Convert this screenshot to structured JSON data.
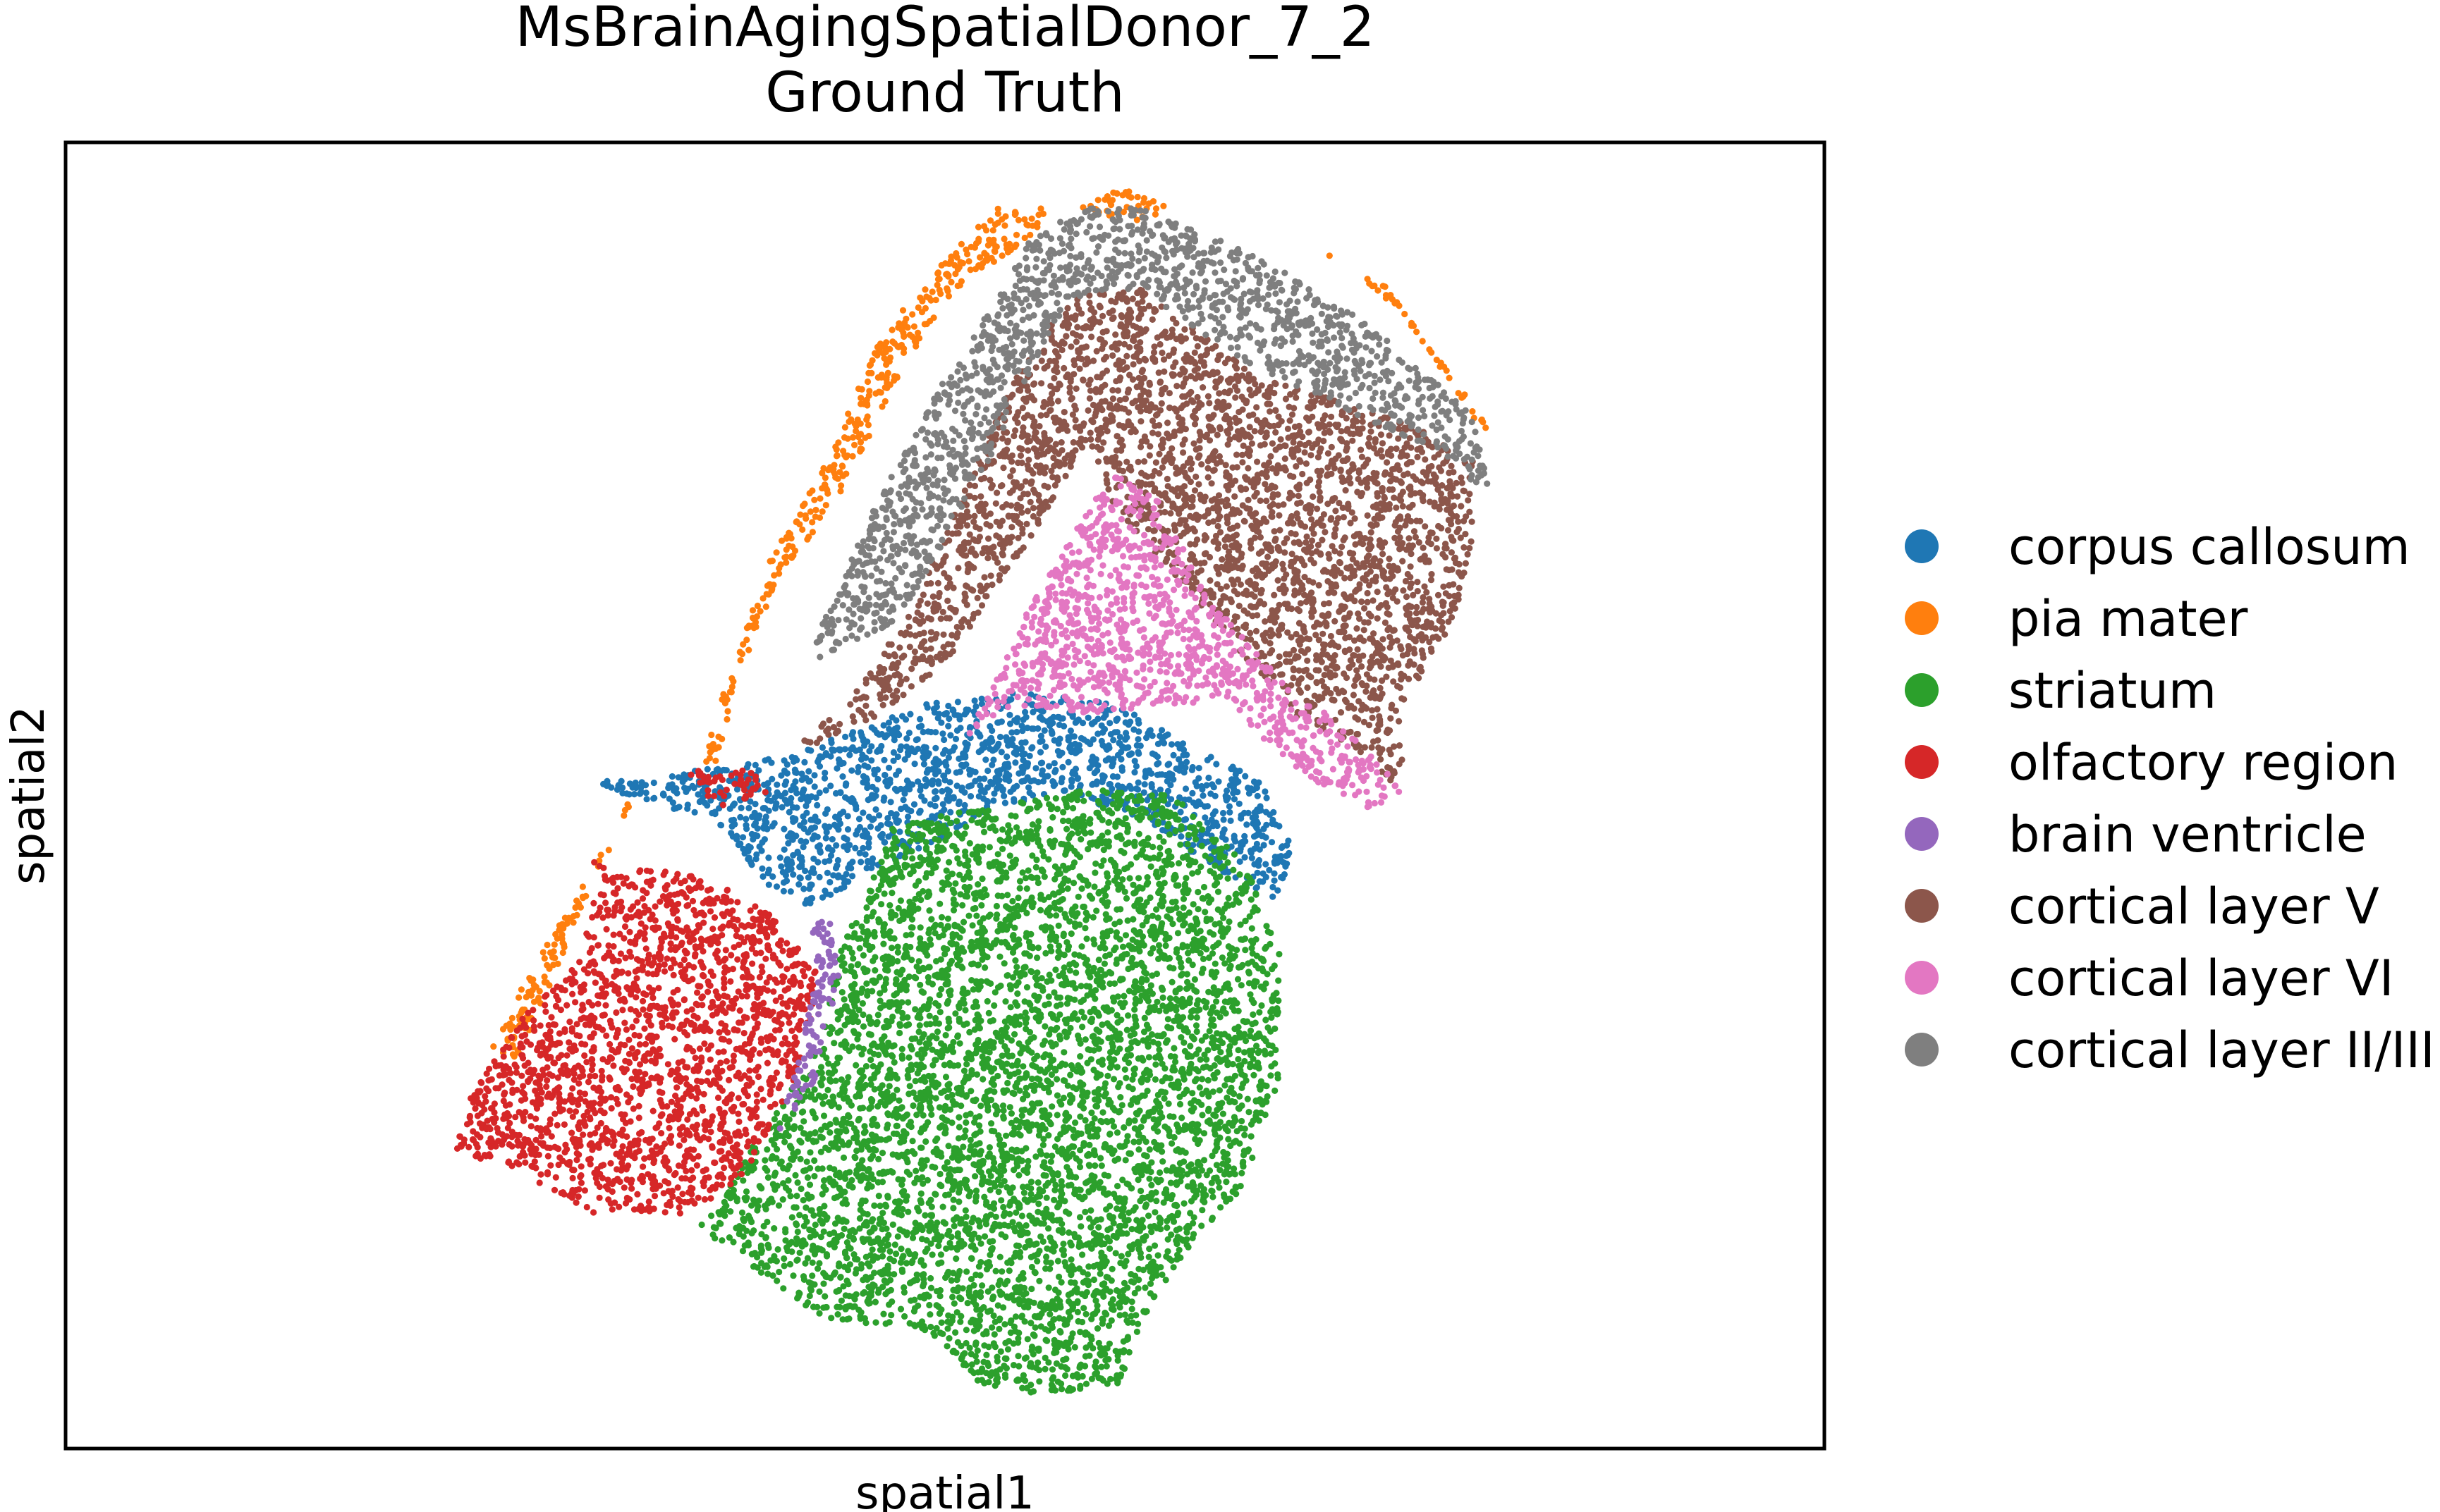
{
  "chart_data": {
    "type": "scatter",
    "title": "MsBrainAgingSpatialDonor_7_2",
    "subtitle": "Ground Truth",
    "xlabel": "spatial1",
    "ylabel": "spatial2",
    "xlim": [
      0,
      100
    ],
    "ylim": [
      0,
      100
    ],
    "grid": false,
    "ticks_visible": false,
    "legend_position": "right",
    "series": [
      {
        "name": "corpus callosum",
        "color": "#1f77b4",
        "regions": [
          [
            [
              30,
              51
            ],
            [
              34,
              51.5
            ],
            [
              41,
              53
            ],
            [
              49,
              57
            ],
            [
              54,
              58
            ],
            [
              60,
              57
            ],
            [
              64,
              54
            ],
            [
              68,
              51
            ],
            [
              70,
              46
            ],
            [
              69,
              42
            ],
            [
              66,
              44
            ],
            [
              60,
              49
            ],
            [
              56,
              50
            ],
            [
              53,
              49
            ],
            [
              49,
              46
            ],
            [
              45,
              44
            ],
            [
              43,
              41
            ],
            [
              40,
              43
            ],
            [
              37,
              48
            ],
            [
              32,
              50
            ]
          ]
        ]
      },
      {
        "name": "pia mater",
        "color": "#ff7f0e",
        "regions": [
          [
            [
              46,
              84
            ],
            [
              48,
              88
            ],
            [
              50,
              91
            ],
            [
              53,
              95
            ],
            [
              56,
              95
            ],
            [
              55,
              93
            ],
            [
              50,
              88
            ],
            [
              47,
              81
            ],
            [
              44,
              73
            ],
            [
              40,
              65
            ],
            [
              38,
              58
            ],
            [
              37,
              52
            ],
            [
              36,
              53
            ],
            [
              38,
              60
            ],
            [
              40,
              68
            ],
            [
              43,
              75
            ]
          ],
          [
            [
              32,
              49
            ],
            [
              33,
              52
            ],
            [
              31,
              47
            ],
            [
              28,
              40
            ],
            [
              25,
              33
            ],
            [
              24,
              30
            ],
            [
              26,
              30
            ],
            [
              28,
              37
            ],
            [
              30,
              43
            ]
          ],
          [
            [
              57,
              95
            ],
            [
              60,
              96.5
            ],
            [
              63,
              95
            ],
            [
              61,
              94
            ]
          ],
          [
            [
              71,
              92
            ],
            [
              75,
              89
            ],
            [
              80,
              80
            ],
            [
              82,
              76
            ],
            [
              80,
              79
            ],
            [
              76,
              87
            ]
          ]
        ]
      },
      {
        "name": "striatum",
        "color": "#2ca02c",
        "regions": [
          [
            [
              47,
              48
            ],
            [
              52,
              49
            ],
            [
              58,
              50.5
            ],
            [
              63,
              50
            ],
            [
              67,
              45
            ],
            [
              69,
              38
            ],
            [
              69,
              28
            ],
            [
              67,
              20
            ],
            [
              62,
              12
            ],
            [
              60,
              5
            ],
            [
              55,
              4
            ],
            [
              52,
              5
            ],
            [
              49,
              9
            ],
            [
              43,
              10
            ],
            [
              40,
              13
            ],
            [
              36,
              17
            ],
            [
              40,
              25
            ],
            [
              43,
              31
            ],
            [
              44,
              38
            ],
            [
              46,
              44
            ]
          ]
        ]
      },
      {
        "name": "olfactory region",
        "color": "#d62728",
        "regions": [
          [
            [
              30,
              45
            ],
            [
              36,
              44
            ],
            [
              40,
              41
            ],
            [
              43,
              36
            ],
            [
              42,
              30
            ],
            [
              40,
              24
            ],
            [
              38,
              20
            ],
            [
              35,
              18
            ],
            [
              30,
              18
            ],
            [
              26,
              21
            ],
            [
              22,
              23
            ],
            [
              23,
              27
            ],
            [
              26,
              33
            ],
            [
              29,
              37
            ],
            [
              30,
              41
            ]
          ],
          [
            [
              35,
              52
            ],
            [
              39,
              52
            ],
            [
              40,
              50
            ],
            [
              37,
              49
            ]
          ]
        ]
      },
      {
        "name": "brain ventricle",
        "color": "#9467bd",
        "regions": [
          [
            [
              42.5,
              40
            ],
            [
              43.5,
              41
            ],
            [
              44,
              36
            ],
            [
              43,
              30
            ],
            [
              42,
              26
            ],
            [
              40.5,
              24
            ],
            [
              41.5,
              29
            ],
            [
              42.5,
              35
            ]
          ]
        ]
      },
      {
        "name": "cortical layer V",
        "color": "#8c564b",
        "regions": [
          [
            [
              41,
              53
            ],
            [
              46,
              56
            ],
            [
              50,
              60
            ],
            [
              53,
              66
            ],
            [
              56,
              72
            ],
            [
              58,
              77
            ],
            [
              60,
              71
            ],
            [
              63,
              67
            ],
            [
              66,
              62
            ],
            [
              70,
              56
            ],
            [
              74,
              53
            ],
            [
              76,
              50
            ],
            [
              76,
              57
            ],
            [
              79,
              63
            ],
            [
              80,
              70
            ],
            [
              80,
              76
            ],
            [
              77,
              78
            ],
            [
              73,
              80
            ],
            [
              68,
              82
            ],
            [
              64,
              86
            ],
            [
              61,
              89
            ],
            [
              57,
              88
            ],
            [
              54,
              82
            ],
            [
              52,
              76
            ],
            [
              50,
              70
            ],
            [
              48,
              64
            ],
            [
              45,
              58
            ]
          ]
        ]
      },
      {
        "name": "cortical layer VI",
        "color": "#e377c2",
        "regions": [
          [
            [
              48,
              52
            ],
            [
              51,
              54
            ],
            [
              53,
              59
            ],
            [
              55,
              65
            ],
            [
              58,
              72
            ],
            [
              60,
              75
            ],
            [
              62,
              73
            ],
            [
              65,
              65
            ],
            [
              69,
              59
            ],
            [
              72,
              56
            ],
            [
              75,
              52
            ],
            [
              76,
              50
            ],
            [
              74,
              49
            ],
            [
              71,
              51
            ],
            [
              69,
              53
            ],
            [
              66,
              57
            ],
            [
              62,
              57
            ],
            [
              58,
              56
            ],
            [
              54,
              57
            ],
            [
              51,
              54
            ]
          ]
        ]
      },
      {
        "name": "cortical layer II/III",
        "color": "#7f7f7f",
        "regions": [
          [
            [
              42,
              60
            ],
            [
              44,
              66
            ],
            [
              46,
              72
            ],
            [
              48,
              77
            ],
            [
              50,
              82
            ],
            [
              53,
              88
            ],
            [
              55,
              93
            ],
            [
              58,
              95
            ],
            [
              61,
              95
            ],
            [
              65,
              93
            ],
            [
              71,
              89
            ],
            [
              77,
              83
            ],
            [
              80,
              79
            ],
            [
              81,
              73
            ],
            [
              77,
              77
            ],
            [
              72,
              80
            ],
            [
              67,
              83
            ],
            [
              63,
              87
            ],
            [
              60,
              89
            ],
            [
              57,
              88
            ],
            [
              55,
              83
            ],
            [
              53,
              77
            ],
            [
              51,
              72
            ],
            [
              49,
              67
            ],
            [
              47,
              63
            ]
          ]
        ]
      }
    ]
  }
}
